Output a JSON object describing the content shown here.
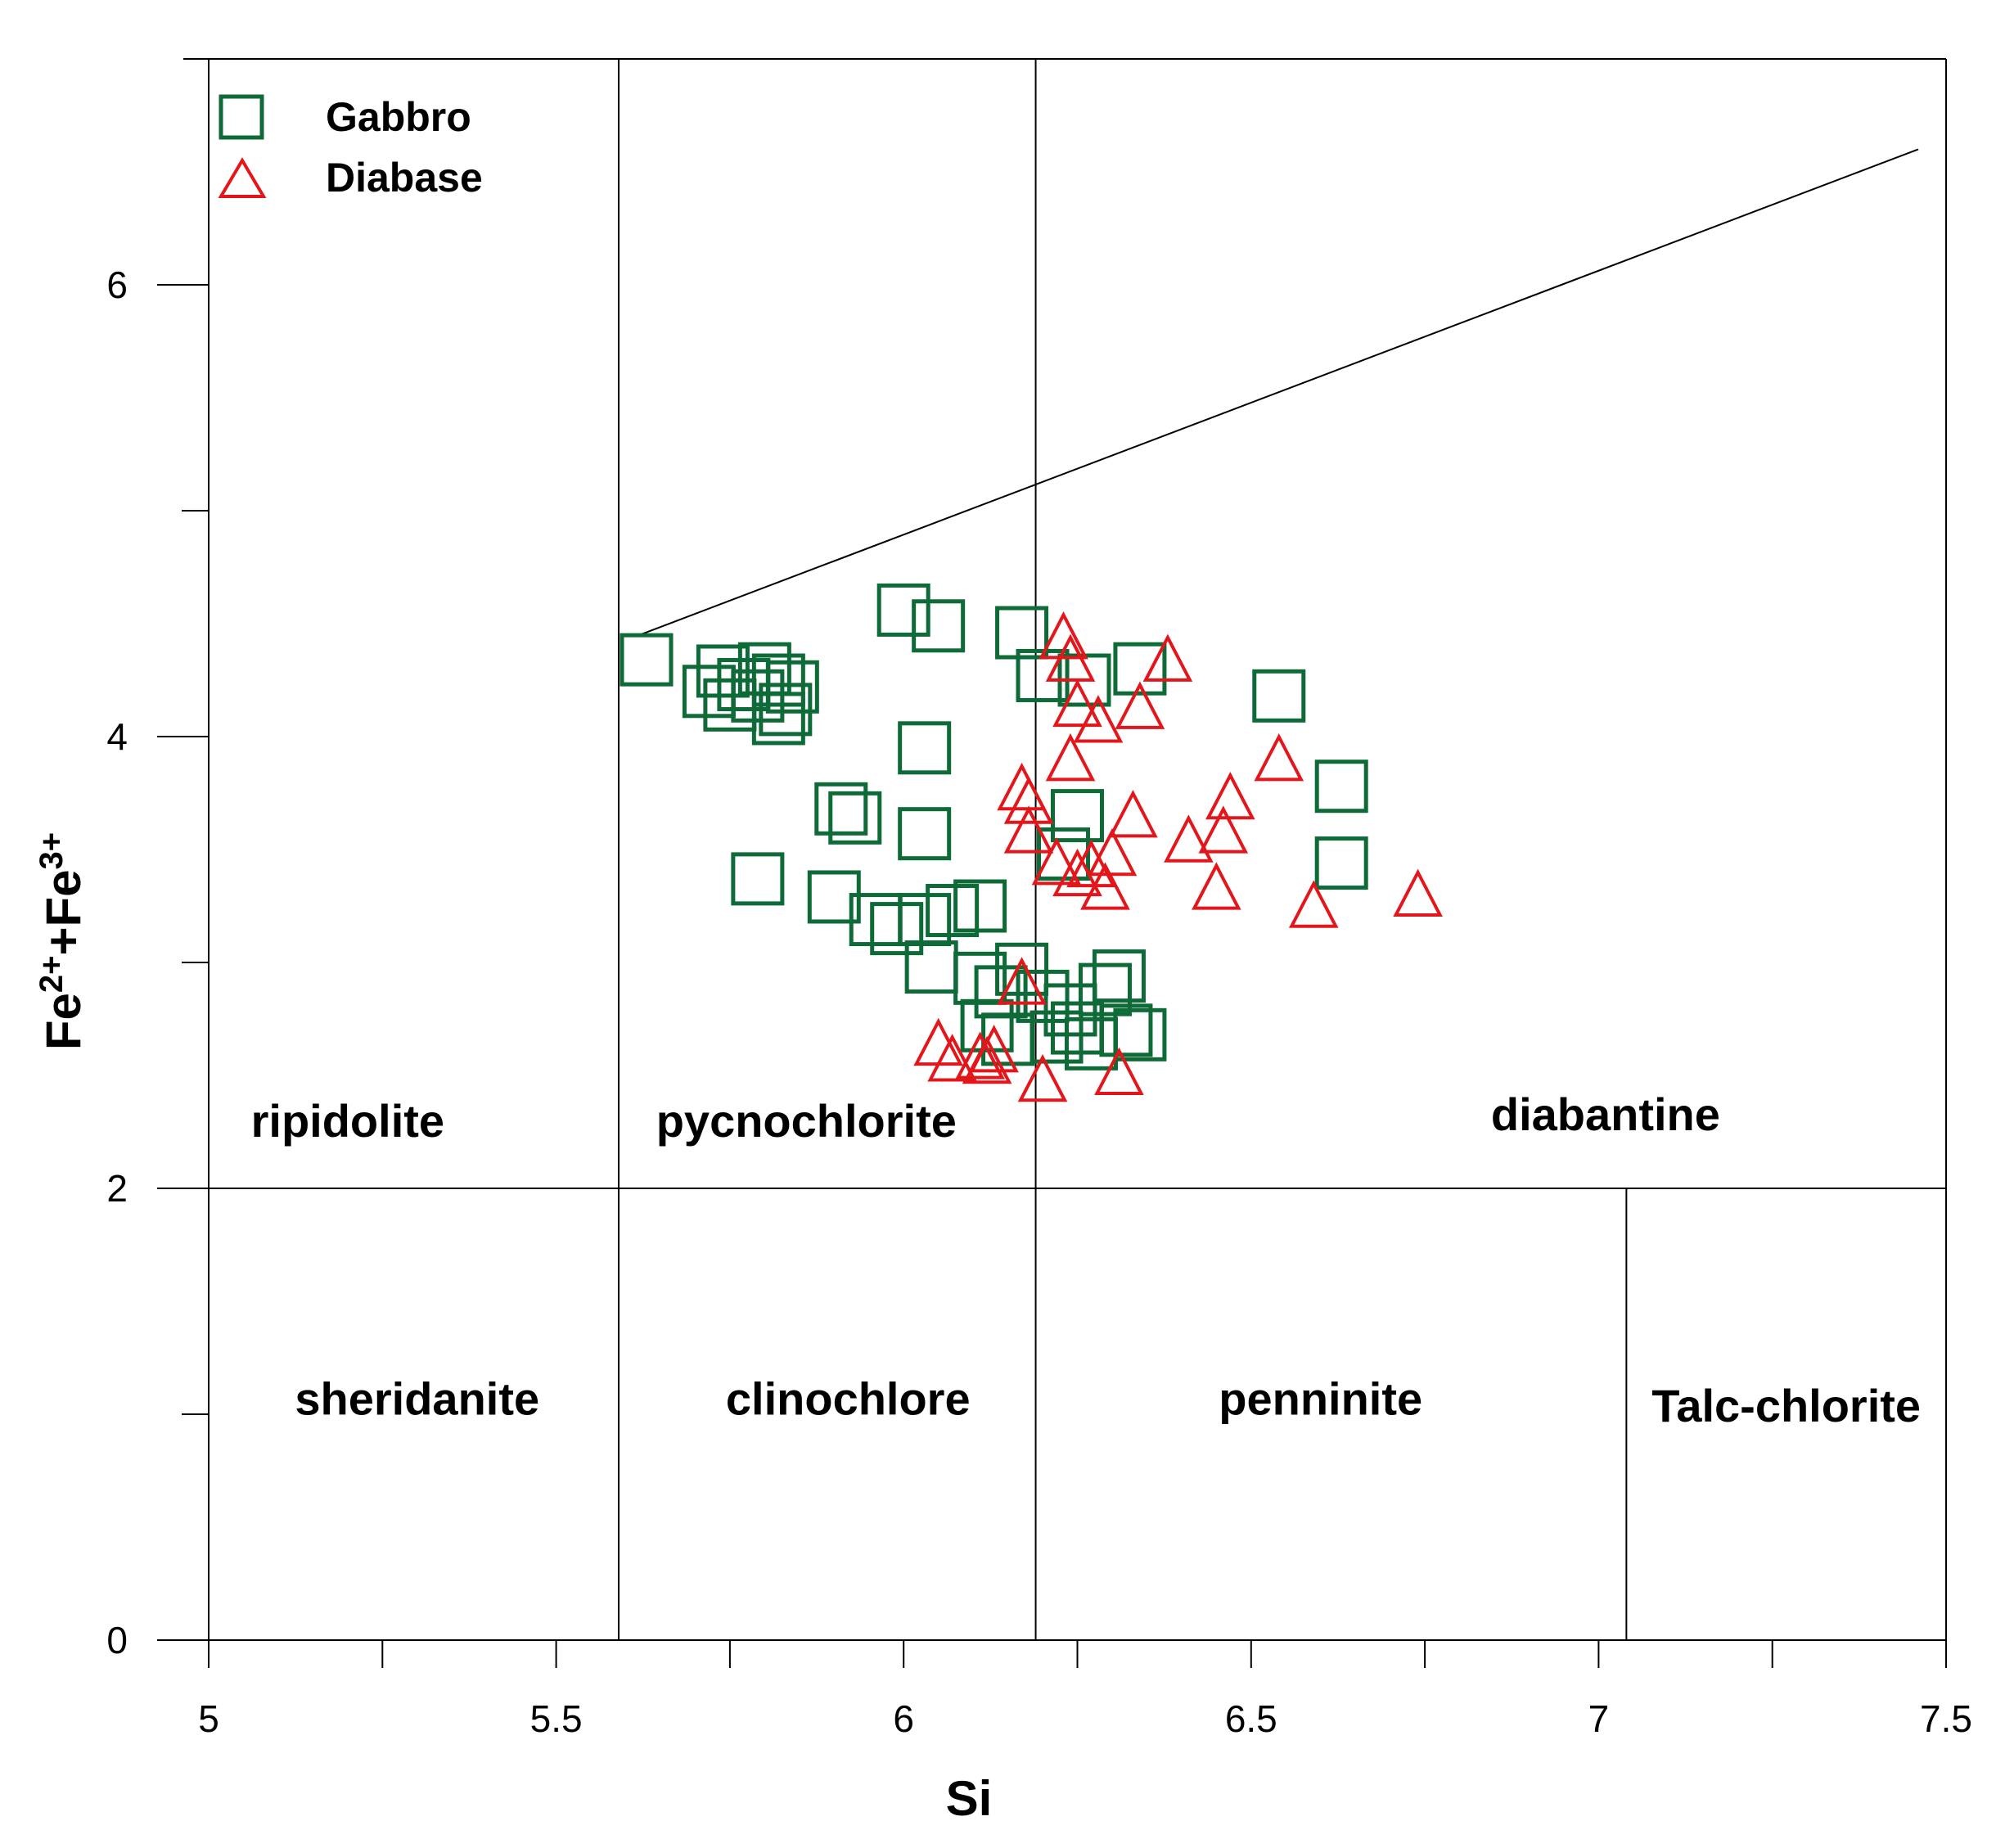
{
  "chart_data": {
    "type": "scatter",
    "title": "",
    "xlabel": "Si",
    "ylabel": "Fe2+ + Fe3+",
    "ylabel_parts": {
      "fe1": "Fe",
      "sup1": "2+",
      "plus": "+",
      "fe2": "Fe",
      "sup2": "3+"
    },
    "xlim": [
      5,
      7.5
    ],
    "ylim": [
      0,
      7
    ],
    "x_ticks": [
      {
        "value": 5,
        "label": "5"
      },
      {
        "value": 5.5,
        "label": "5.5"
      },
      {
        "value": 6,
        "label": "6"
      },
      {
        "value": 6.5,
        "label": "6.5"
      },
      {
        "value": 7,
        "label": "7"
      },
      {
        "value": 7.5,
        "label": "7.5"
      }
    ],
    "x_minor_ticks": [
      5.25,
      5.75,
      6.25,
      6.75,
      7.25
    ],
    "y_ticks": [
      {
        "value": 0,
        "label": "0"
      },
      {
        "value": 2,
        "label": "2"
      },
      {
        "value": 4,
        "label": "4"
      },
      {
        "value": 6,
        "label": "6"
      }
    ],
    "y_minor_ticks": [
      1,
      3,
      5
    ],
    "grid": false,
    "legend_position": "top-left",
    "field_boundaries": {
      "horizontal_y": 2,
      "vertical_upper": [
        5.59,
        6.19
      ],
      "vertical_lower": [
        5.59,
        6.19,
        7.04
      ],
      "diagonal": [
        [
          5.62,
          4.45
        ],
        [
          7.46,
          6.6
        ]
      ]
    },
    "field_labels": [
      {
        "name": "ripidolite",
        "x": 5.2,
        "y": 2.3
      },
      {
        "name": "pycnochlorite",
        "x": 5.86,
        "y": 2.3
      },
      {
        "name": "diabantine",
        "x": 7.01,
        "y": 2.33
      },
      {
        "name": "sheridanite",
        "x": 5.3,
        "y": 1.07
      },
      {
        "name": "clinochlore",
        "x": 5.92,
        "y": 1.07
      },
      {
        "name": "penninite",
        "x": 6.6,
        "y": 1.07
      },
      {
        "name": "Talc-chlorite",
        "x": 7.27,
        "y": 1.04
      }
    ],
    "series": [
      {
        "name": "Gabbro",
        "marker": "square",
        "color": "#0e6b38",
        "points": [
          [
            5.63,
            4.34
          ],
          [
            5.72,
            4.2
          ],
          [
            5.74,
            4.29
          ],
          [
            5.75,
            4.14
          ],
          [
            5.77,
            4.23
          ],
          [
            5.79,
            4.18
          ],
          [
            5.8,
            4.3
          ],
          [
            5.82,
            4.25
          ],
          [
            5.83,
            4.12
          ],
          [
            5.84,
            4.22
          ],
          [
            5.82,
            4.08
          ],
          [
            6.0,
            4.56
          ],
          [
            6.05,
            4.49
          ],
          [
            6.17,
            4.46
          ],
          [
            6.2,
            4.27
          ],
          [
            6.26,
            4.25
          ],
          [
            6.34,
            4.3
          ],
          [
            6.54,
            4.18
          ],
          [
            6.03,
            3.95
          ],
          [
            5.91,
            3.68
          ],
          [
            5.93,
            3.64
          ],
          [
            6.03,
            3.57
          ],
          [
            5.79,
            3.37
          ],
          [
            5.9,
            3.29
          ],
          [
            5.96,
            3.19
          ],
          [
            5.99,
            3.15
          ],
          [
            6.03,
            3.19
          ],
          [
            6.07,
            3.23
          ],
          [
            6.11,
            3.25
          ],
          [
            6.04,
            2.98
          ],
          [
            6.11,
            2.93
          ],
          [
            6.14,
            2.87
          ],
          [
            6.17,
            2.97
          ],
          [
            6.2,
            2.85
          ],
          [
            6.22,
            2.67
          ],
          [
            6.25,
            2.71
          ],
          [
            6.27,
            2.64
          ],
          [
            6.24,
            2.79
          ],
          [
            6.29,
            2.88
          ],
          [
            6.31,
            2.94
          ],
          [
            6.32,
            2.7
          ],
          [
            6.34,
            2.68
          ],
          [
            6.12,
            2.72
          ],
          [
            6.15,
            2.66
          ],
          [
            6.25,
            3.65
          ],
          [
            6.23,
            3.48
          ],
          [
            6.63,
            3.78
          ],
          [
            6.63,
            3.44
          ]
        ]
      },
      {
        "name": "Diabase",
        "marker": "triangle",
        "color": "#e3161b",
        "points": [
          [
            6.23,
            4.43
          ],
          [
            6.24,
            4.33
          ],
          [
            6.25,
            4.13
          ],
          [
            6.28,
            4.06
          ],
          [
            6.34,
            4.12
          ],
          [
            6.38,
            4.33
          ],
          [
            6.24,
            3.89
          ],
          [
            6.17,
            3.76
          ],
          [
            6.18,
            3.7
          ],
          [
            6.18,
            3.57
          ],
          [
            6.33,
            3.64
          ],
          [
            6.47,
            3.72
          ],
          [
            6.54,
            3.89
          ],
          [
            6.41,
            3.53
          ],
          [
            6.46,
            3.57
          ],
          [
            6.22,
            3.43
          ],
          [
            6.25,
            3.38
          ],
          [
            6.27,
            3.42
          ],
          [
            6.29,
            3.32
          ],
          [
            6.3,
            3.47
          ],
          [
            6.45,
            3.32
          ],
          [
            6.59,
            3.24
          ],
          [
            6.74,
            3.29
          ],
          [
            6.17,
            2.9
          ],
          [
            6.05,
            2.63
          ],
          [
            6.07,
            2.56
          ],
          [
            6.11,
            2.57
          ],
          [
            6.12,
            2.55
          ],
          [
            6.13,
            2.6
          ],
          [
            6.2,
            2.47
          ],
          [
            6.31,
            2.5
          ]
        ]
      }
    ]
  }
}
